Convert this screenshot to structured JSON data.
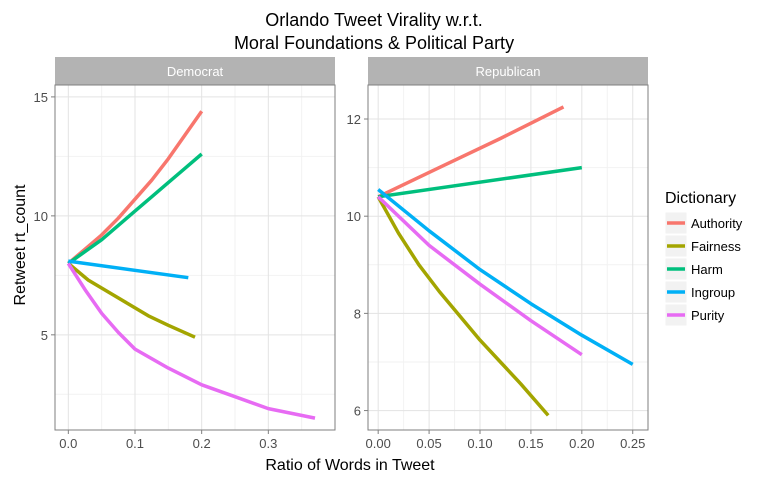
{
  "chart_data": {
    "type": "line",
    "title_lines": [
      "Orlando Tweet Virality w.r.t.",
      "Moral Foundations & Political Party"
    ],
    "xlabel": "Ratio of Words in Tweet",
    "ylabel": "Retweet rt_count",
    "legend": {
      "title": "Dictionary",
      "position": "right",
      "items": [
        {
          "name": "Authority",
          "color": "#F8766D"
        },
        {
          "name": "Fairness",
          "color": "#A3A500"
        },
        {
          "name": "Harm",
          "color": "#00BF7D"
        },
        {
          "name": "Ingroup",
          "color": "#00B0F6"
        },
        {
          "name": "Purity",
          "color": "#E76BF3"
        }
      ]
    },
    "grid": true,
    "panels": [
      {
        "label": "Democrat",
        "xlim": [
          -0.02,
          0.4
        ],
        "ylim": [
          1.0,
          15.5
        ],
        "xticks": [
          0.0,
          0.1,
          0.2,
          0.3
        ],
        "xtick_labels": [
          "0.0",
          "0.1",
          "0.2",
          "0.3"
        ],
        "yticks": [
          5,
          10,
          15
        ],
        "ytick_labels": [
          "5",
          "10",
          "15"
        ],
        "series": [
          {
            "name": "Authority",
            "color": "#F8766D",
            "x": [
              0.0,
              0.025,
              0.05,
              0.075,
              0.1,
              0.125,
              0.15,
              0.175,
              0.2
            ],
            "y": [
              8.0,
              8.6,
              9.2,
              9.9,
              10.7,
              11.5,
              12.4,
              13.4,
              14.4
            ]
          },
          {
            "name": "Fairness",
            "color": "#A3A500",
            "x": [
              0.0,
              0.03,
              0.06,
              0.09,
              0.12,
              0.15,
              0.19
            ],
            "y": [
              8.0,
              7.3,
              6.8,
              6.3,
              5.8,
              5.4,
              4.9
            ]
          },
          {
            "name": "Harm",
            "color": "#00BF7D",
            "x": [
              0.0,
              0.025,
              0.05,
              0.075,
              0.1,
              0.125,
              0.15,
              0.175,
              0.2
            ],
            "y": [
              8.0,
              8.5,
              9.0,
              9.6,
              10.2,
              10.8,
              11.4,
              12.0,
              12.6
            ]
          },
          {
            "name": "Ingroup",
            "color": "#00B0F6",
            "x": [
              0.0,
              0.18
            ],
            "y": [
              8.1,
              7.4
            ]
          },
          {
            "name": "Purity",
            "color": "#E76BF3",
            "x": [
              0.0,
              0.025,
              0.05,
              0.075,
              0.1,
              0.15,
              0.2,
              0.25,
              0.3,
              0.37
            ],
            "y": [
              8.0,
              6.9,
              5.9,
              5.1,
              4.4,
              3.6,
              2.9,
              2.4,
              1.9,
              1.5
            ]
          }
        ]
      },
      {
        "label": "Republican",
        "xlim": [
          -0.01,
          0.265
        ],
        "ylim": [
          5.6,
          12.7
        ],
        "xticks": [
          0.0,
          0.05,
          0.1,
          0.15,
          0.2,
          0.25
        ],
        "xtick_labels": [
          "0.00",
          "0.05",
          "0.10",
          "0.15",
          "0.20",
          "0.25"
        ],
        "yticks": [
          6,
          8,
          10,
          12
        ],
        "ytick_labels": [
          "6",
          "8",
          "10",
          "12"
        ],
        "series": [
          {
            "name": "Authority",
            "color": "#F8766D",
            "x": [
              0.0,
              0.06,
              0.12,
              0.182
            ],
            "y": [
              10.4,
              11.0,
              11.6,
              12.25
            ]
          },
          {
            "name": "Fairness",
            "color": "#A3A500",
            "x": [
              0.0,
              0.02,
              0.04,
              0.06,
              0.08,
              0.1,
              0.12,
              0.14,
              0.167
            ],
            "y": [
              10.4,
              9.65,
              9.0,
              8.45,
              7.95,
              7.45,
              7.0,
              6.55,
              5.9
            ]
          },
          {
            "name": "Harm",
            "color": "#00BF7D",
            "x": [
              0.0,
              0.2
            ],
            "y": [
              10.4,
              11.0
            ]
          },
          {
            "name": "Ingroup",
            "color": "#00B0F6",
            "x": [
              0.0,
              0.05,
              0.1,
              0.15,
              0.2,
              0.25
            ],
            "y": [
              10.55,
              9.7,
              8.9,
              8.2,
              7.55,
              6.95
            ]
          },
          {
            "name": "Purity",
            "color": "#E76BF3",
            "x": [
              0.0,
              0.05,
              0.1,
              0.15,
              0.2
            ],
            "y": [
              10.4,
              9.4,
              8.6,
              7.85,
              7.15
            ]
          }
        ]
      }
    ]
  }
}
